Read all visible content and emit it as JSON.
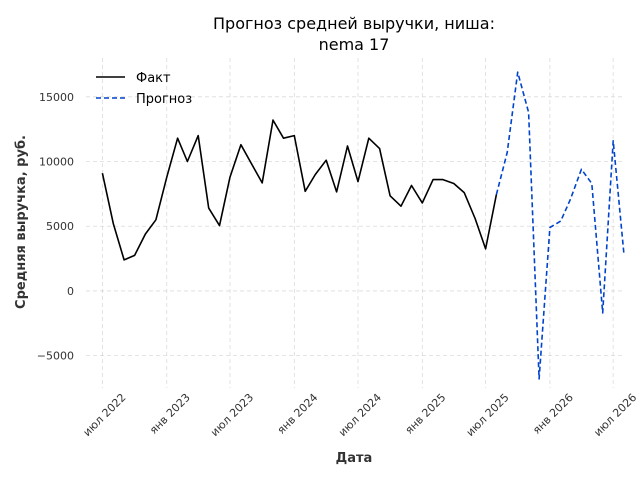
{
  "chart_data": {
    "type": "line",
    "title_line1": "Прогноз средней выручки, ниша:",
    "title_line2": "nema 17",
    "xlabel": "Дата",
    "ylabel": "Средняя выручка, руб.",
    "ylim": [
      -7500,
      18000
    ],
    "xlim": [
      "2022-05-15",
      "2026-08-01"
    ],
    "grid": true,
    "legend_position": "top-left",
    "y_ticks": [
      -5000,
      0,
      5000,
      10000,
      15000
    ],
    "y_tick_labels": [
      "−5000",
      "0",
      "5000",
      "10000",
      "15000"
    ],
    "x_ticks": [
      {
        "date": "2022-07-01",
        "label": "июл 2022"
      },
      {
        "date": "2023-01-01",
        "label": "янв 2023"
      },
      {
        "date": "2023-07-01",
        "label": "июл 2023"
      },
      {
        "date": "2024-01-01",
        "label": "янв 2024"
      },
      {
        "date": "2024-07-01",
        "label": "июл 2024"
      },
      {
        "date": "2025-01-01",
        "label": "янв 2025"
      },
      {
        "date": "2025-07-01",
        "label": "июл 2025"
      },
      {
        "date": "2026-01-01",
        "label": "янв 2026"
      },
      {
        "date": "2026-07-01",
        "label": "июл 2026"
      }
    ],
    "series": [
      {
        "name": "Факт",
        "color": "#000000",
        "style": "solid",
        "x": [
          "2022-07-01",
          "2022-08-01",
          "2022-09-01",
          "2022-10-01",
          "2022-11-01",
          "2022-12-01",
          "2023-01-01",
          "2023-02-01",
          "2023-03-01",
          "2023-04-01",
          "2023-05-01",
          "2023-06-01",
          "2023-07-01",
          "2023-08-01",
          "2023-09-01",
          "2023-10-01",
          "2023-11-01",
          "2023-12-01",
          "2024-01-01",
          "2024-02-01",
          "2024-03-01",
          "2024-04-01",
          "2024-05-01",
          "2024-06-01",
          "2024-07-01",
          "2024-08-01",
          "2024-09-01",
          "2024-10-01",
          "2024-11-01",
          "2024-12-01",
          "2025-01-01",
          "2025-02-01",
          "2025-03-01",
          "2025-04-01",
          "2025-05-01",
          "2025-06-01",
          "2025-07-01",
          "2025-08-01"
        ],
        "values": [
          9100,
          5200,
          2400,
          2750,
          4400,
          5500,
          8800,
          11800,
          10000,
          12000,
          6400,
          5050,
          8800,
          11300,
          9800,
          8350,
          13200,
          11800,
          12000,
          7700,
          9000,
          10100,
          7650,
          11200,
          8450,
          11800,
          11000,
          7350,
          6550,
          8150,
          6800,
          8600,
          8600,
          8300,
          7600,
          5600,
          3250,
          7450
        ]
      },
      {
        "name": "Прогноз",
        "color": "#0044cc",
        "style": "dashed",
        "x": [
          "2025-08-01",
          "2025-09-01",
          "2025-10-01",
          "2025-11-01",
          "2025-12-01",
          "2026-01-01",
          "2026-02-01",
          "2026-03-01",
          "2026-04-01",
          "2026-05-01",
          "2026-06-01",
          "2026-07-01",
          "2026-08-01"
        ],
        "values": [
          7450,
          10700,
          16900,
          13800,
          -6800,
          4900,
          5400,
          7100,
          9400,
          8300,
          -1700,
          11600,
          2800
        ]
      }
    ]
  }
}
